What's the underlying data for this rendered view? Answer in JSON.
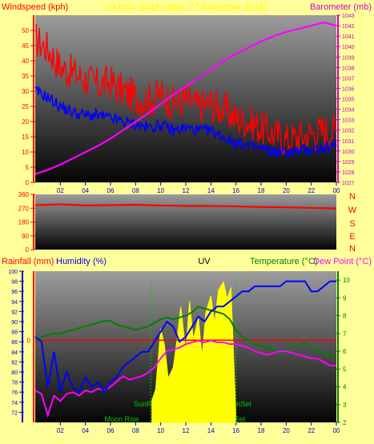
{
  "colors": {
    "background": "#ffff99",
    "wind": "#ff0000",
    "wind_avg": "#0000ff",
    "barometer": "#ff00ff",
    "direction": "#ff0000",
    "humidity": "#0000ff",
    "temperature": "#008000",
    "dewpoint": "#ff00ff",
    "uv": "#ffff00",
    "rainfall": "#ff0000",
    "axis_red": "#ff0000",
    "axis_blue": "#0000cc",
    "axis_magenta": "#cc00cc",
    "axis_green": "#008000"
  },
  "header": {
    "left_label": "Windspeed (kph)",
    "center_label": "24 hour graph (data: 27 November 2016)",
    "right_label": "Barometer (mb)"
  },
  "bottom_header": {
    "rainfall": "Rainfall (mm)",
    "humidity": "Humidity (%)",
    "uv": "UV",
    "temperature": "Temperature (°C)",
    "dewpoint": "Dew Point (°C)"
  },
  "compass": [
    "N",
    "W",
    "S",
    "E",
    "N"
  ],
  "events": {
    "sunrise": "SunRise",
    "sunset": "SunSet",
    "moonrise": "Moon Rise",
    "moonset": "Moon Set"
  },
  "chart_data": [
    {
      "type": "line",
      "name": "wind-barometer",
      "x_ticks": [
        "02",
        "04",
        "06",
        "08",
        "10",
        "12",
        "14",
        "16",
        "18",
        "20",
        "22",
        "00"
      ],
      "xlim": [
        0,
        24
      ],
      "ylim_left": [
        0,
        55
      ],
      "ylim_right": [
        1027,
        1043
      ],
      "y_ticks_left": [
        0,
        5,
        10,
        15,
        20,
        25,
        30,
        35,
        40,
        45,
        50
      ],
      "y_ticks_right": [
        1027,
        1028,
        1029,
        1030,
        1031,
        1032,
        1033,
        1034,
        1035,
        1036,
        1037,
        1038,
        1039,
        1040,
        1041,
        1042,
        1043
      ],
      "series": [
        {
          "axis": "left",
          "x": [
            0,
            1,
            2,
            3,
            4,
            5,
            6,
            7,
            8,
            9,
            10,
            11,
            12,
            13,
            14,
            15,
            16,
            17,
            18,
            19,
            20,
            21,
            22,
            23,
            24
          ],
          "values": [
            47,
            44,
            38,
            36,
            34,
            32,
            33,
            30,
            28,
            27,
            29,
            26,
            27,
            25,
            26,
            24,
            21,
            20,
            18,
            16,
            14,
            15,
            16,
            17,
            17
          ]
        },
        {
          "axis": "left",
          "x": [
            0,
            1,
            2,
            3,
            4,
            5,
            6,
            7,
            8,
            9,
            10,
            11,
            12,
            13,
            14,
            15,
            16,
            17,
            18,
            19,
            20,
            21,
            22,
            23,
            24
          ],
          "values": [
            30,
            28,
            25,
            23,
            22,
            22,
            21,
            20,
            19,
            18,
            19,
            17,
            18,
            17,
            17,
            15,
            13,
            12,
            11,
            10,
            10,
            10,
            11,
            11,
            12
          ]
        },
        {
          "axis": "right",
          "x": [
            0,
            1,
            2,
            3,
            4,
            5,
            6,
            7,
            8,
            9,
            10,
            11,
            12,
            13,
            14,
            15,
            16,
            17,
            18,
            19,
            20,
            21,
            22,
            23,
            24
          ],
          "values": [
            1027.8,
            1028.2,
            1028.7,
            1029.3,
            1029.9,
            1030.5,
            1031.2,
            1032.0,
            1032.8,
            1033.6,
            1034.5,
            1035.4,
            1036.2,
            1037.0,
            1037.8,
            1038.6,
            1039.3,
            1039.9,
            1040.5,
            1041.0,
            1041.4,
            1041.7,
            1042.0,
            1042.3,
            1042.0
          ]
        }
      ]
    },
    {
      "type": "line",
      "name": "wind-direction",
      "xlim": [
        0,
        24
      ],
      "ylim": [
        0,
        360
      ],
      "y_ticks": [
        0,
        90,
        180,
        270,
        360
      ],
      "series": [
        {
          "x": [
            0,
            2,
            4,
            6,
            8,
            10,
            12,
            14,
            16,
            18,
            20,
            22,
            24
          ],
          "values": [
            290,
            295,
            288,
            290,
            292,
            288,
            285,
            284,
            282,
            278,
            276,
            272,
            268
          ]
        }
      ]
    },
    {
      "type": "line",
      "name": "humidity-temperature",
      "xlim": [
        0,
        24
      ],
      "ylim_left": [
        70,
        100
      ],
      "ylim_right": [
        2,
        10.5
      ],
      "y_ticks_left": [
        72,
        74,
        76,
        78,
        80,
        82,
        84,
        86,
        88,
        90,
        92,
        94,
        96,
        98,
        100
      ],
      "y_ticks_right": [
        2,
        3,
        4,
        5,
        6,
        7,
        8,
        9,
        10
      ],
      "x_ticks": [
        "02",
        "04",
        "06",
        "08",
        "10",
        "12",
        "14",
        "16",
        "18",
        "20",
        "22",
        "00"
      ],
      "rainfall_marker": "0",
      "series": [
        {
          "axis": "left",
          "x": [
            0,
            0.5,
            1,
            1.5,
            2,
            2.5,
            3,
            3.5,
            4,
            4.5,
            5,
            5.5,
            6,
            6.5,
            7,
            7.5,
            8,
            8.5,
            9,
            9.5,
            10,
            10.5,
            11,
            11.5,
            12,
            12.5,
            13,
            13.5,
            14,
            14.5,
            15,
            15.5,
            16,
            16.5,
            17,
            17.5,
            18,
            18.5,
            19,
            19.5,
            20,
            20.5,
            21,
            21.5,
            22,
            22.5,
            23,
            23.5,
            24
          ],
          "values": [
            87,
            86,
            77,
            84,
            76,
            80,
            77,
            76,
            79,
            77,
            78,
            76,
            78,
            79,
            81,
            82,
            83,
            84,
            84,
            86,
            88,
            90,
            89,
            86,
            87,
            89,
            91,
            90,
            92,
            93,
            93,
            94,
            95,
            96,
            96,
            97,
            97,
            97,
            97,
            97,
            98,
            98,
            98,
            98,
            96,
            96,
            97,
            98,
            98
          ]
        },
        {
          "axis": "right",
          "x": [
            0,
            0.5,
            1,
            1.5,
            2,
            2.5,
            3,
            3.5,
            4,
            4.5,
            5,
            5.5,
            6,
            6.5,
            7,
            7.5,
            8,
            8.5,
            9,
            9.5,
            10,
            10.5,
            11,
            11.5,
            12,
            12.5,
            13,
            13.5,
            14,
            14.5,
            15,
            15.5,
            16,
            16.5,
            17,
            17.5,
            18,
            18.5,
            19,
            19.5,
            20,
            20.5,
            21,
            21.5,
            22,
            22.5,
            23,
            23.5,
            24
          ],
          "values": [
            6.6,
            6.8,
            6.9,
            7.0,
            7.0,
            7.1,
            7.2,
            7.3,
            7.4,
            7.5,
            7.6,
            7.7,
            7.7,
            7.5,
            7.4,
            7.3,
            7.2,
            7.3,
            7.4,
            7.6,
            7.8,
            7.9,
            7.8,
            7.9,
            8.0,
            8.2,
            8.5,
            8.4,
            8.3,
            8.2,
            8.1,
            7.8,
            7.2,
            6.8,
            6.6,
            6.4,
            6.3,
            6.2,
            6.1,
            6.0,
            6.1,
            6.2,
            6.4,
            6.5,
            6.2,
            6.0,
            5.9,
            5.8,
            5.7
          ]
        },
        {
          "axis": "right",
          "x": [
            0,
            0.5,
            1,
            1.5,
            2,
            2.5,
            3,
            3.5,
            4,
            4.5,
            5,
            5.5,
            6,
            6.5,
            7,
            7.5,
            8,
            8.5,
            9,
            9.5,
            10,
            10.5,
            11,
            11.5,
            12,
            12.5,
            13,
            13.5,
            14,
            14.5,
            15,
            15.5,
            16,
            16.5,
            17,
            17.5,
            18,
            18.5,
            19,
            19.5,
            20,
            20.5,
            21,
            21.5,
            22,
            22.5,
            23,
            23.5,
            24
          ],
          "values": [
            3.8,
            3.6,
            2.4,
            3.5,
            3.2,
            3.6,
            3.7,
            3.5,
            3.8,
            3.7,
            3.9,
            3.8,
            4.0,
            4.3,
            4.6,
            4.4,
            4.5,
            4.6,
            4.8,
            5.1,
            5.6,
            6.0,
            6.1,
            6.2,
            6.4,
            6.5,
            6.6,
            6.5,
            6.6,
            6.5,
            6.5,
            6.4,
            6.4,
            6.3,
            6.2,
            6.0,
            5.9,
            5.8,
            5.9,
            6.0,
            6.0,
            5.9,
            5.8,
            5.7,
            5.6,
            5.6,
            5.4,
            5.2,
            5.2
          ]
        },
        {
          "axis": "uv",
          "x": [
            9.3,
            9.6,
            10,
            10.3,
            10.6,
            11,
            11.3,
            11.6,
            12,
            12.3,
            12.6,
            13,
            13.3,
            13.6,
            14,
            14.3,
            14.6,
            15,
            15.3,
            15.6,
            16
          ],
          "values": [
            0.8,
            1.2,
            3.4,
            2.8,
            1.6,
            2.0,
            3.0,
            4.2,
            2.6,
            4.4,
            3.0,
            3.8,
            2.4,
            4.0,
            4.6,
            3.6,
            4.8,
            5.1,
            4.5,
            4.9,
            0.2
          ]
        }
      ]
    }
  ]
}
